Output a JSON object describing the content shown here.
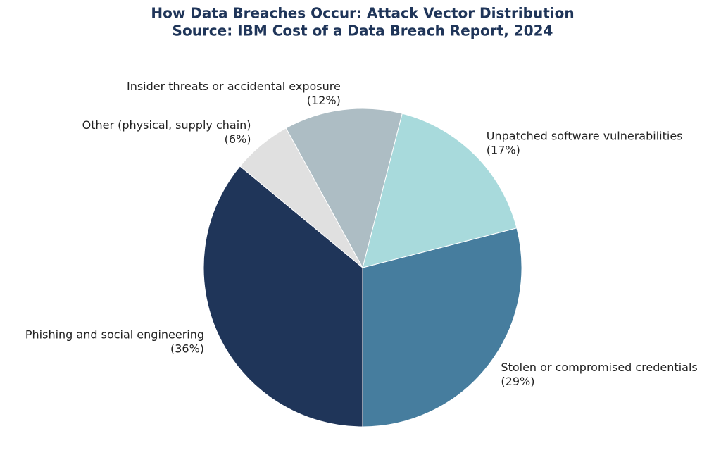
{
  "chart_data": {
    "type": "pie",
    "title": "How Data Breaches Occur: Attack Vector Distribution",
    "subtitle": "Source: IBM Cost of a Data Breach Report, 2024",
    "categories": [
      "Phishing and social engineering",
      "Stolen or compromised credentials",
      "Unpatched software vulnerabilities",
      "Insider threats or accidental exposure",
      "Other (physical, supply chain)"
    ],
    "values": [
      36,
      29,
      17,
      12,
      6
    ],
    "value_labels": [
      "(36%)",
      "(29%)",
      "(17%)",
      "(12%)",
      "(6%)"
    ],
    "colors": [
      "#1f3559",
      "#467d9e",
      "#a8dadc",
      "#adbdc4",
      "#e0e0e0"
    ]
  }
}
